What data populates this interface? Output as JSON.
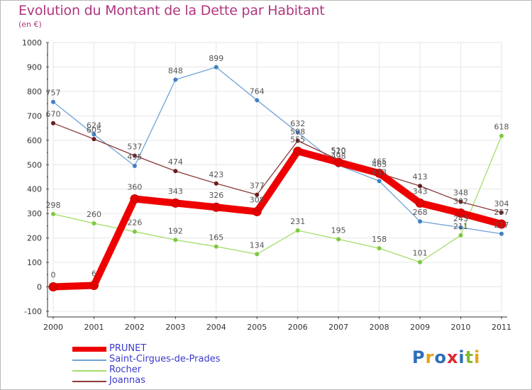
{
  "title": "Evolution du Montant de la Dette par Habitant",
  "subtitle": "(en €)",
  "logo_text": "Proxiti",
  "logo_colors": [
    "#2e6fb7",
    "#e8a317",
    "#2e6fb7",
    "#d9272e",
    "#2e6fb7",
    "#82bb2f",
    "#e8a317"
  ],
  "chart_data": {
    "type": "line",
    "x": [
      "2000",
      "2001",
      "2002",
      "2003",
      "2004",
      "2005",
      "2006",
      "2007",
      "2008",
      "2009",
      "2010",
      "2011"
    ],
    "ylim": [
      -100,
      1000
    ],
    "yticks": [
      "-100",
      "0",
      "100",
      "200",
      "300",
      "400",
      "500",
      "600",
      "700",
      "800",
      "900",
      "1000"
    ],
    "legend_position": "bottom-left",
    "series": [
      {
        "name": "PRUNET",
        "color": "#ee0000",
        "width": 10,
        "marker_color": "#e00000",
        "values": [
          0,
          6,
          360,
          343,
          326,
          308,
          555,
          510,
          465,
          343,
          302,
          257
        ],
        "labels": [
          "0",
          "6",
          "360",
          "343",
          "326",
          "308",
          "555",
          "510",
          "465",
          "343",
          "302",
          "257"
        ]
      },
      {
        "name": "Saint-Cirgues-de-Prades",
        "color": "#6fa3d6",
        "width": 1.3,
        "marker_color": "#3f7fc2",
        "values": [
          757,
          624,
          495,
          848,
          899,
          764,
          632,
          498,
          433,
          268,
          243,
          217
        ],
        "labels": [
          "757",
          "624",
          "495",
          "848",
          "899",
          "764",
          "632",
          "498",
          "433",
          "268",
          "243",
          "217"
        ]
      },
      {
        "name": "Rocher",
        "color": "#a5dd6b",
        "width": 1.3,
        "marker_color": "#7dc93f",
        "values": [
          298,
          260,
          226,
          192,
          165,
          134,
          231,
          195,
          158,
          101,
          211,
          618
        ],
        "labels": [
          "298",
          "260",
          "226",
          "192",
          "165",
          "134",
          "231",
          "195",
          "158",
          "101",
          "211",
          "618"
        ]
      },
      {
        "name": "Joannas",
        "color": "#8b3a3a",
        "width": 1.3,
        "marker_color": "#6b1a1a",
        "values": [
          670,
          605,
          537,
          474,
          423,
          377,
          598,
          520,
          465,
          413,
          348,
          304
        ],
        "labels": [
          "670",
          "605",
          "537",
          "474",
          "423",
          "377",
          "598",
          "520",
          "465",
          "413",
          "348",
          "304"
        ]
      }
    ]
  }
}
